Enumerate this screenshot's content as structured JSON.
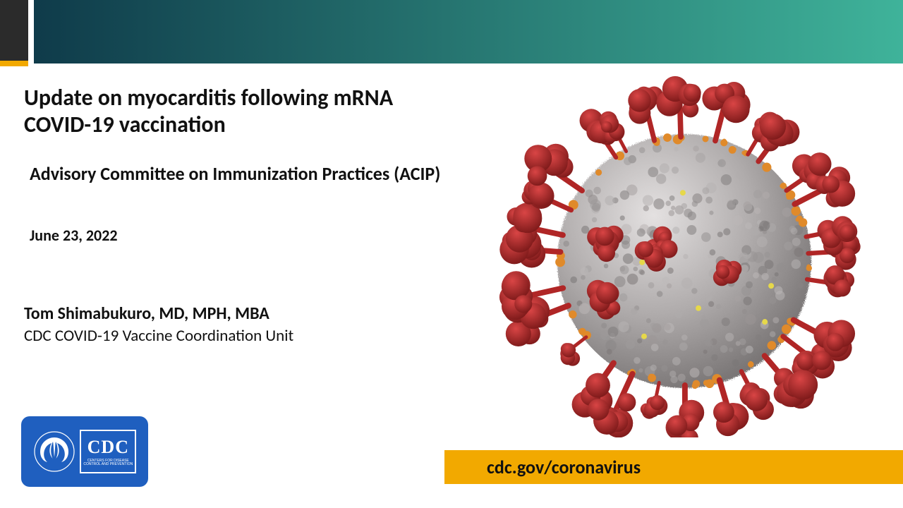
{
  "layout": {
    "header_gradient_from": "#0f3b4a",
    "header_gradient_to": "#3fb39a",
    "side_black": "#2b2b2b",
    "side_orange": "#f2a900",
    "logo_bg": "#1f5fbf",
    "url_bar_bg": "#f2a900"
  },
  "title": {
    "text": "Update on myocarditis following mRNA COVID-19 vaccination",
    "fontsize": 32
  },
  "subtitle": {
    "text": "Advisory Committee on Immunization Practices (ACIP)",
    "fontsize": 26
  },
  "date": {
    "text": "June 23, 2022",
    "fontsize": 22
  },
  "author": {
    "name": "Tom Shimabukuro, MD, MPH, MBA",
    "org": "CDC COVID-19 Vaccine Coordination Unit",
    "name_fontsize": 24,
    "org_fontsize": 23
  },
  "logo": {
    "cdc_label": "CDC",
    "cdc_sub": "CENTERS FOR DISEASE CONTROL AND PREVENTION",
    "cdc_fontsize": 26
  },
  "url": {
    "text": "cdc.gov/coronavirus",
    "fontsize": 26
  },
  "virus_graphic": {
    "body_color": "#b0acac",
    "body_shadow": "#7a7676",
    "spike_color": "#b02626",
    "spike_shadow": "#7a1818",
    "small_protein_color": "#e08a2a",
    "dot_color": "#e6d84a",
    "n_spikes": 28,
    "n_small": 40
  }
}
